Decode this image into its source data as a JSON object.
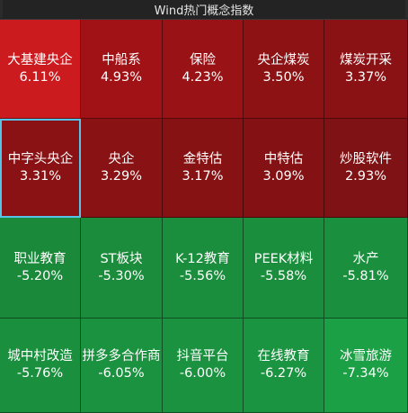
{
  "title": "Wind热门概念指数",
  "tiles": [
    {
      "name": "大基建央企",
      "change": "6.11%",
      "color": "#cc1b1e"
    },
    {
      "name": "中船系",
      "change": "4.93%",
      "color": "#a11216"
    },
    {
      "name": "保险",
      "change": "4.23%",
      "color": "#991316"
    },
    {
      "name": "央企煤炭",
      "change": "3.50%",
      "color": "#8d1214"
    },
    {
      "name": "煤炭开采",
      "change": "3.37%",
      "color": "#8b1214"
    },
    {
      "name": "中字头央企",
      "change": "3.31%",
      "color": "#8a1214"
    },
    {
      "name": "央企",
      "change": "3.29%",
      "color": "#891214"
    },
    {
      "name": "金特估",
      "change": "3.17%",
      "color": "#861214"
    },
    {
      "name": "中特估",
      "change": "3.09%",
      "color": "#841214"
    },
    {
      "name": "炒股软件",
      "change": "2.93%",
      "color": "#7f1214"
    },
    {
      "name": "职业教育",
      "change": "-5.20%",
      "color": "#1a8a3a"
    },
    {
      "name": "ST板块",
      "change": "-5.30%",
      "color": "#1a8c3b"
    },
    {
      "name": "K-12教育",
      "change": "-5.56%",
      "color": "#1a8e3d"
    },
    {
      "name": "PEEK材料",
      "change": "-5.58%",
      "color": "#1a8e3d"
    },
    {
      "name": "水产",
      "change": "-5.81%",
      "color": "#1a903e"
    },
    {
      "name": "城中村改造",
      "change": "-5.76%",
      "color": "#1a903e"
    },
    {
      "name": "拼多多合作商",
      "change": "-6.05%",
      "color": "#1b9240"
    },
    {
      "name": "抖音平台",
      "change": "-6.00%",
      "color": "#1b9240"
    },
    {
      "name": "在线教育",
      "change": "-6.27%",
      "color": "#1b9441"
    },
    {
      "name": "冰雪旅游",
      "change": "-7.34%",
      "color": "#1ca045"
    }
  ]
}
